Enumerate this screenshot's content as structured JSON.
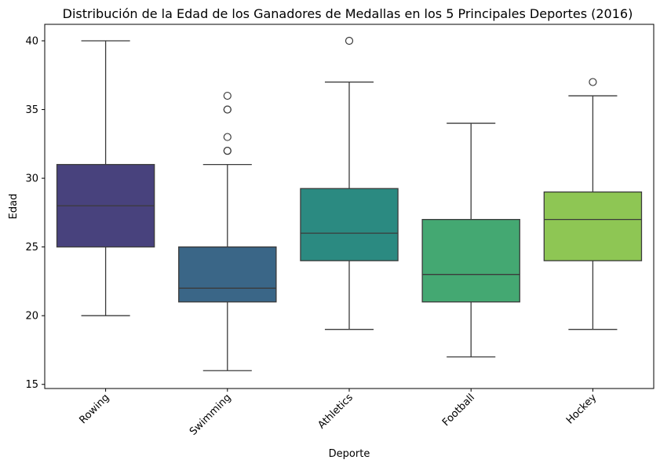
{
  "chart_data": {
    "type": "box",
    "title": "Distribución de la Edad de los Ganadores de Medallas en los 5 Principales Deportes (2016)",
    "xlabel": "Deporte",
    "ylabel": "Edad",
    "ylim": [
      14.7,
      41.2
    ],
    "yticks": [
      15,
      20,
      25,
      30,
      35,
      40
    ],
    "grid": false,
    "legend": "none",
    "categories": [
      "Rowing",
      "Swimming",
      "Athletics",
      "Football",
      "Hockey"
    ],
    "colors": [
      "#48427d",
      "#3a6687",
      "#2b8a81",
      "#44a872",
      "#8ec654"
    ],
    "boxes": [
      {
        "category": "Rowing",
        "whisker_low": 20,
        "q1": 25,
        "median": 28,
        "q3": 31,
        "whisker_high": 40,
        "outliers": []
      },
      {
        "category": "Swimming",
        "whisker_low": 16,
        "q1": 21,
        "median": 22,
        "q3": 25,
        "whisker_high": 31,
        "outliers": [
          32,
          32,
          33,
          35,
          35,
          36
        ]
      },
      {
        "category": "Athletics",
        "whisker_low": 19,
        "q1": 24,
        "median": 26,
        "q3": 29.25,
        "whisker_high": 37,
        "outliers": [
          40
        ]
      },
      {
        "category": "Football",
        "whisker_low": 17,
        "q1": 21,
        "median": 23,
        "q3": 27,
        "whisker_high": 34,
        "outliers": []
      },
      {
        "category": "Hockey",
        "whisker_low": 19,
        "q1": 24,
        "median": 27,
        "q3": 29,
        "whisker_high": 36,
        "outliers": [
          37
        ]
      }
    ]
  }
}
